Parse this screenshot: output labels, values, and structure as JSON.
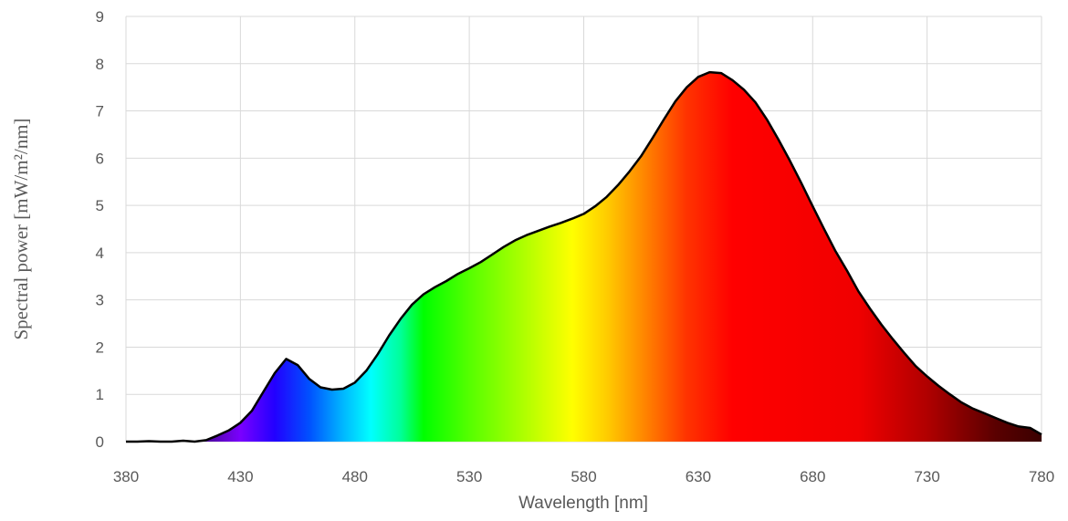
{
  "chart_data": {
    "type": "area",
    "xlabel": "Wavelength [nm]",
    "ylabel": "Spectral power [mW/m²/nm]",
    "xlim": [
      380,
      780
    ],
    "ylim": [
      0,
      9
    ],
    "x_ticks": [
      380,
      430,
      480,
      530,
      580,
      630,
      680,
      730,
      780
    ],
    "y_ticks": [
      0,
      1,
      2,
      3,
      4,
      5,
      6,
      7,
      8,
      9
    ],
    "grid": true,
    "fill": "visible-spectrum-gradient",
    "line_color": "#000000",
    "series": [
      {
        "x": [
          380,
          385,
          390,
          395,
          400,
          405,
          410,
          415,
          420,
          425,
          430,
          435,
          440,
          445,
          450,
          455,
          460,
          465,
          470,
          475,
          480,
          485,
          490,
          495,
          500,
          505,
          510,
          515,
          520,
          525,
          530,
          535,
          540,
          545,
          550,
          555,
          560,
          565,
          570,
          575,
          580,
          585,
          590,
          595,
          600,
          605,
          610,
          615,
          620,
          625,
          630,
          635,
          640,
          645,
          650,
          655,
          660,
          665,
          670,
          675,
          680,
          685,
          690,
          695,
          700,
          705,
          710,
          715,
          720,
          725,
          730,
          735,
          740,
          745,
          750,
          755,
          760,
          765,
          770,
          775,
          780
        ],
        "values": [
          0.0,
          0.0,
          0.01,
          0.0,
          0.0,
          0.02,
          0.0,
          0.03,
          0.13,
          0.24,
          0.4,
          0.65,
          1.05,
          1.45,
          1.75,
          1.62,
          1.33,
          1.15,
          1.1,
          1.12,
          1.25,
          1.5,
          1.85,
          2.25,
          2.6,
          2.9,
          3.12,
          3.27,
          3.4,
          3.55,
          3.67,
          3.8,
          3.96,
          4.12,
          4.26,
          4.37,
          4.46,
          4.55,
          4.63,
          4.72,
          4.82,
          4.98,
          5.18,
          5.43,
          5.72,
          6.04,
          6.42,
          6.82,
          7.2,
          7.5,
          7.72,
          7.82,
          7.8,
          7.65,
          7.45,
          7.18,
          6.82,
          6.4,
          5.95,
          5.48,
          4.98,
          4.5,
          4.03,
          3.62,
          3.18,
          2.82,
          2.48,
          2.17,
          1.88,
          1.6,
          1.38,
          1.18,
          1.0,
          0.83,
          0.7,
          0.6,
          0.5,
          0.4,
          0.32,
          0.29,
          0.15
        ]
      }
    ],
    "gradient_stops": [
      {
        "nm": 380,
        "color": "#1a0a2a"
      },
      {
        "nm": 410,
        "color": "#3d0a7a"
      },
      {
        "nm": 430,
        "color": "#7a00ff"
      },
      {
        "nm": 445,
        "color": "#2200ff"
      },
      {
        "nm": 460,
        "color": "#0050ff"
      },
      {
        "nm": 475,
        "color": "#00b8ff"
      },
      {
        "nm": 487,
        "color": "#00ffff"
      },
      {
        "nm": 500,
        "color": "#00ff99"
      },
      {
        "nm": 510,
        "color": "#00ff00"
      },
      {
        "nm": 530,
        "color": "#55ff00"
      },
      {
        "nm": 555,
        "color": "#b3ff00"
      },
      {
        "nm": 575,
        "color": "#ffff00"
      },
      {
        "nm": 590,
        "color": "#ffcc00"
      },
      {
        "nm": 605,
        "color": "#ff8c00"
      },
      {
        "nm": 625,
        "color": "#ff3300"
      },
      {
        "nm": 645,
        "color": "#ff0000"
      },
      {
        "nm": 700,
        "color": "#f00000"
      },
      {
        "nm": 730,
        "color": "#b00000"
      },
      {
        "nm": 760,
        "color": "#5a0000"
      },
      {
        "nm": 780,
        "color": "#3a0000"
      }
    ]
  }
}
